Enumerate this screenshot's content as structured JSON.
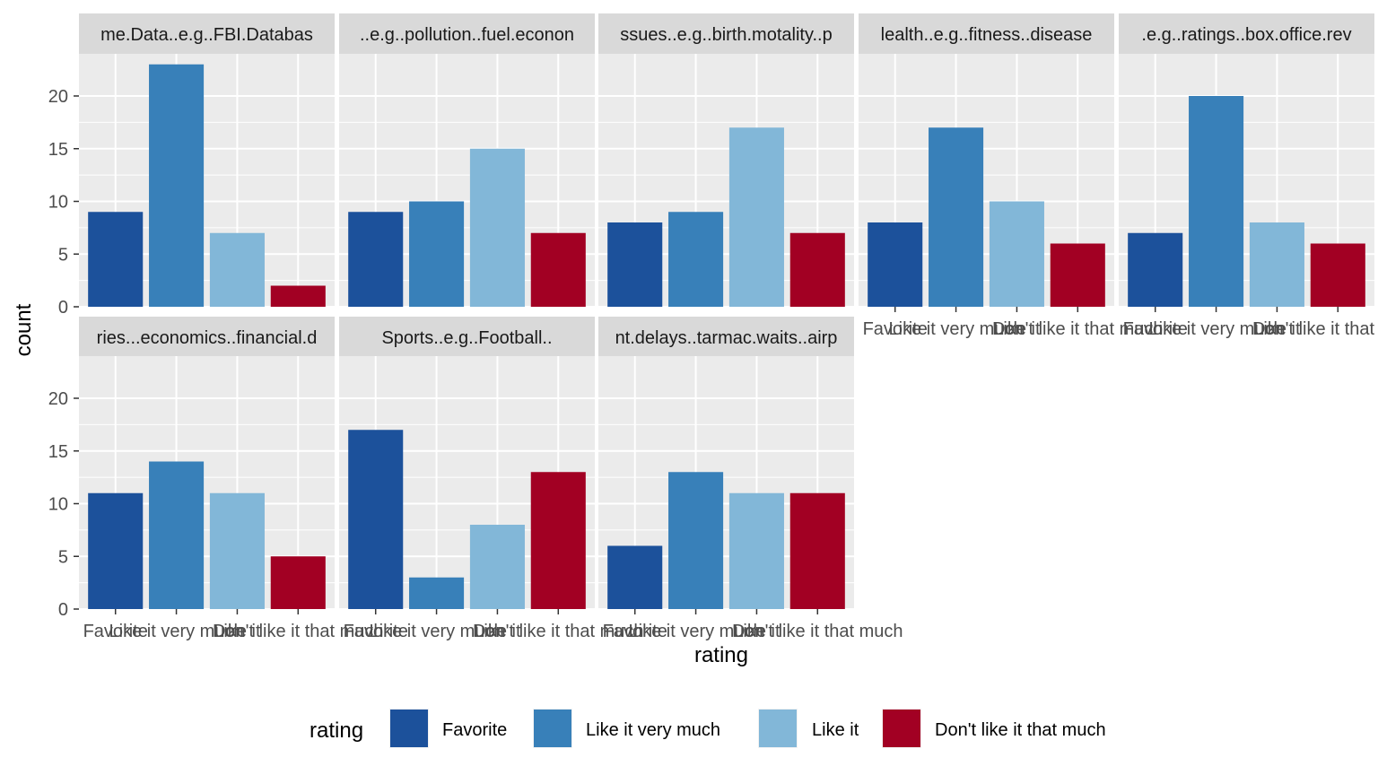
{
  "chart_data": {
    "type": "bar",
    "xlabel": "rating",
    "ylabel": "count",
    "ylim": [
      0,
      24
    ],
    "y_ticks": [
      0,
      5,
      10,
      15,
      20
    ],
    "categories": [
      "Favorite",
      "Like it very much",
      "Like it",
      "Don't like it that much"
    ],
    "legend": {
      "title": "rating",
      "position": "bottom",
      "entries": [
        "Favorite",
        "Like it very much",
        "Like it",
        "Don't like it that much"
      ]
    },
    "colors": {
      "Favorite": "#1c519b",
      "Like it very much": "#3880b9",
      "Like it": "#82b7d8",
      "Don't like it that much": "#a20023"
    },
    "panels": [
      {
        "title": "me.Data..e.g..FBI.Databas",
        "values": [
          9,
          23,
          7,
          2
        ]
      },
      {
        "title": "..e.g..pollution..fuel.econon",
        "values": [
          9,
          10,
          15,
          7
        ]
      },
      {
        "title": "ssues..e.g..birth.motality..p",
        "values": [
          8,
          9,
          17,
          7
        ]
      },
      {
        "title": "lealth..e.g..fitness..disease",
        "values": [
          8,
          17,
          10,
          6
        ]
      },
      {
        "title": ".e.g..ratings..box.office.rev",
        "values": [
          7,
          20,
          8,
          6
        ]
      },
      {
        "title": "ries...economics..financial.d",
        "values": [
          11,
          14,
          11,
          5
        ]
      },
      {
        "title": "Sports..e.g..Football..",
        "values": [
          17,
          3,
          8,
          13
        ]
      },
      {
        "title": "nt.delays..tarmac.waits..airp",
        "values": [
          6,
          13,
          11,
          11
        ]
      }
    ]
  }
}
